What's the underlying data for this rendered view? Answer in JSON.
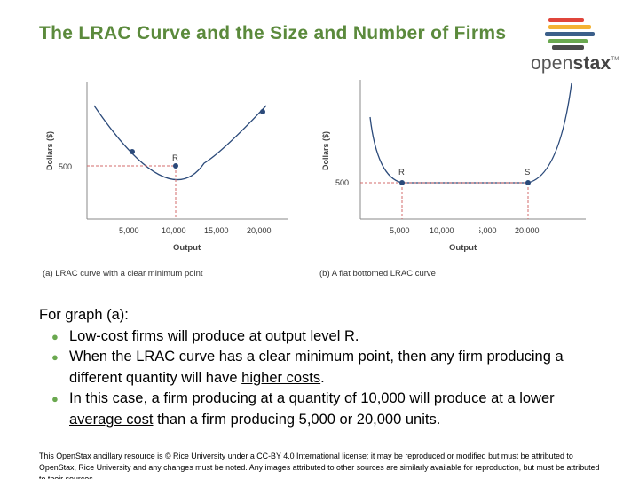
{
  "slide": {
    "title": "The LRAC Curve and the Size and Number of Firms"
  },
  "logo": {
    "brand_open": "open",
    "brand_stax": "stax",
    "trademark": "TM",
    "colors": [
      "#e0453b",
      "#f4b233",
      "#3b5f8a",
      "#6aa84f",
      "#4a4a4a"
    ]
  },
  "figure": {
    "panel_a": {
      "ylabel": "Dollars ($)",
      "xlabel": "Output",
      "y_tick": "500",
      "x_ticks": [
        "5,000",
        "10,000",
        "15,000",
        "20,000"
      ],
      "point_label": "R",
      "caption": "(a) LRAC curve with a clear minimum point"
    },
    "panel_b": {
      "ylabel": "Dollars ($)",
      "xlabel": "Output",
      "y_tick": "500",
      "x_ticks": [
        "5,000",
        "10,000",
        "15,000",
        "20,000"
      ],
      "point_labels": [
        "R",
        "S"
      ],
      "caption": "(b) A flat bottomed LRAC curve"
    },
    "colors": {
      "curve": "#2b4a7a",
      "point": "#2b4a7a",
      "guide": "#d36b6b"
    }
  },
  "body": {
    "intro": "For graph (a):",
    "bullet1": "Low-cost firms will produce at output level R.",
    "bullet2_pre": "When the LRAC curve has a clear minimum point, then any firm producing a different quantity will have ",
    "bullet2_u": "higher costs",
    "bullet2_post": ".",
    "bullet3_pre": "In this case, a firm producing at a quantity of 10,000 will produce at a ",
    "bullet3_u": "lower average cost",
    "bullet3_post": " than a firm producing 5,000 or 20,000 units."
  },
  "footer": {
    "text": "This OpenStax ancillary resource is © Rice University under a CC-BY 4.0 International license; it may be reproduced or modified but must be attributed to OpenStax, Rice University and any changes must be noted. Any images attributed to other sources are similarly available for reproduction, but must be attributed to their sources."
  }
}
